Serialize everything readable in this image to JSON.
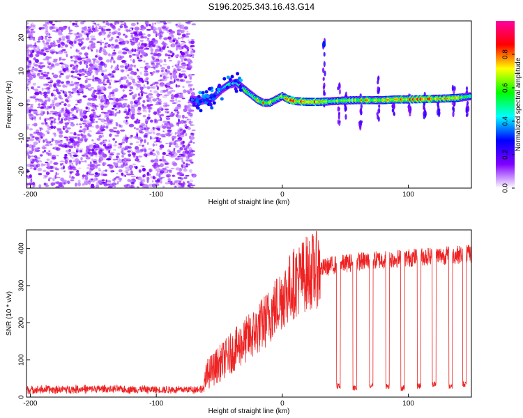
{
  "title": "S196.2025.343.16.43.G14",
  "chart_data": [
    {
      "type": "heatmap",
      "name": "spectrogram",
      "xlabel": "Height of straight line (km)",
      "ylabel": "Frequency (Hz)",
      "xlim": [
        -203,
        150
      ],
      "ylim": [
        -25,
        25
      ],
      "x_ticks": [
        -200,
        -100,
        0,
        100
      ],
      "x_tick_labels": [
        "-200",
        "-100",
        "0",
        "100"
      ],
      "y_ticks": [
        -20,
        -10,
        0,
        10,
        20
      ],
      "y_tick_labels": [
        "-20",
        "-10",
        "0",
        "10",
        "20"
      ],
      "colorbar": {
        "label": "Normalized spectral amplitude",
        "range": [
          0,
          1
        ],
        "ticks": [
          0,
          0.2,
          0.4,
          0.6,
          0.8
        ],
        "tick_labels": [
          "0.0",
          "0.2",
          "0.4",
          "0.6",
          "0.8"
        ],
        "colors": [
          "#ffffff",
          "#8000ff",
          "#0000ff",
          "#00ffff",
          "#00ff00",
          "#ffff00",
          "#ff0000",
          "#ff00a0"
        ]
      },
      "noise_region_x": [
        -203,
        -70
      ],
      "ridge": {
        "x": [
          -72,
          -65,
          -55,
          -48,
          -42,
          -36,
          -30,
          -25,
          -20,
          -15,
          -10,
          -5,
          0,
          5,
          10,
          20,
          30,
          40,
          50,
          60,
          70,
          80,
          90,
          100,
          110,
          120,
          130,
          140,
          150
        ],
        "y": [
          1.5,
          1.0,
          2.0,
          4.5,
          6.0,
          6.5,
          4.5,
          3.0,
          1.5,
          0.5,
          0.5,
          1.5,
          2.5,
          1.5,
          1.0,
          0.8,
          0.8,
          1.0,
          1.2,
          1.3,
          1.3,
          1.3,
          1.5,
          1.5,
          1.6,
          1.7,
          1.8,
          2.0,
          2.5
        ],
        "amplitude": [
          0.35,
          0.3,
          0.35,
          0.4,
          0.45,
          0.5,
          0.55,
          0.6,
          0.7,
          0.75,
          0.65,
          0.6,
          0.7,
          0.75,
          0.8,
          0.9,
          0.7,
          0.65,
          0.6,
          0.7,
          0.75,
          0.7,
          0.75,
          0.8,
          0.85,
          0.8,
          0.7,
          0.7,
          0.6
        ]
      },
      "spikes": [
        {
          "x": 33,
          "from": -1,
          "to": 19
        },
        {
          "x": 45,
          "from": -6,
          "to": 6
        },
        {
          "x": 50,
          "from": -4,
          "to": 3
        },
        {
          "x": 62,
          "from": -7,
          "to": 3
        },
        {
          "x": 76,
          "from": -5,
          "to": 10
        },
        {
          "x": 88,
          "from": -3,
          "to": 2
        },
        {
          "x": 101,
          "from": -4,
          "to": 3
        },
        {
          "x": 113,
          "from": -4,
          "to": 3
        },
        {
          "x": 124,
          "from": -3,
          "to": 3
        },
        {
          "x": 136,
          "from": -3,
          "to": 5
        },
        {
          "x": 147,
          "from": -4,
          "to": 5
        }
      ]
    },
    {
      "type": "line",
      "name": "snr",
      "xlabel": "Height of straight line (km)",
      "ylabel": "SNR (10 * v/v)",
      "xlim": [
        -203,
        150
      ],
      "ylim": [
        0,
        450
      ],
      "x_ticks": [
        -200,
        -100,
        0,
        100
      ],
      "x_tick_labels": [
        "-200",
        "-100",
        "0",
        "100"
      ],
      "y_ticks": [
        0,
        100,
        200,
        300,
        400
      ],
      "y_tick_labels": [
        "0",
        "100",
        "200",
        "300",
        "400"
      ],
      "color": "#ee2222",
      "envelope": {
        "x": [
          -203,
          -150,
          -100,
          -80,
          -62,
          -60,
          -50,
          -40,
          -30,
          -20,
          -10,
          0,
          10,
          20,
          30,
          40,
          50,
          60,
          80,
          100,
          120,
          150
        ],
        "y": [
          20,
          22,
          20,
          20,
          22,
          60,
          90,
          120,
          150,
          180,
          220,
          270,
          310,
          335,
          345,
          355,
          360,
          365,
          370,
          375,
          380,
          385
        ]
      },
      "dropouts": [
        {
          "x": 43,
          "width": 3,
          "level": 30
        },
        {
          "x": 56,
          "width": 3,
          "level": 25
        },
        {
          "x": 69,
          "width": 3,
          "level": 30
        },
        {
          "x": 82,
          "width": 3,
          "level": 30
        },
        {
          "x": 94,
          "width": 3,
          "level": 25
        },
        {
          "x": 107,
          "width": 3,
          "level": 30
        },
        {
          "x": 119,
          "width": 3,
          "level": 35
        },
        {
          "x": 132,
          "width": 3,
          "level": 30
        },
        {
          "x": 143,
          "width": 3,
          "level": 35
        }
      ]
    }
  ]
}
